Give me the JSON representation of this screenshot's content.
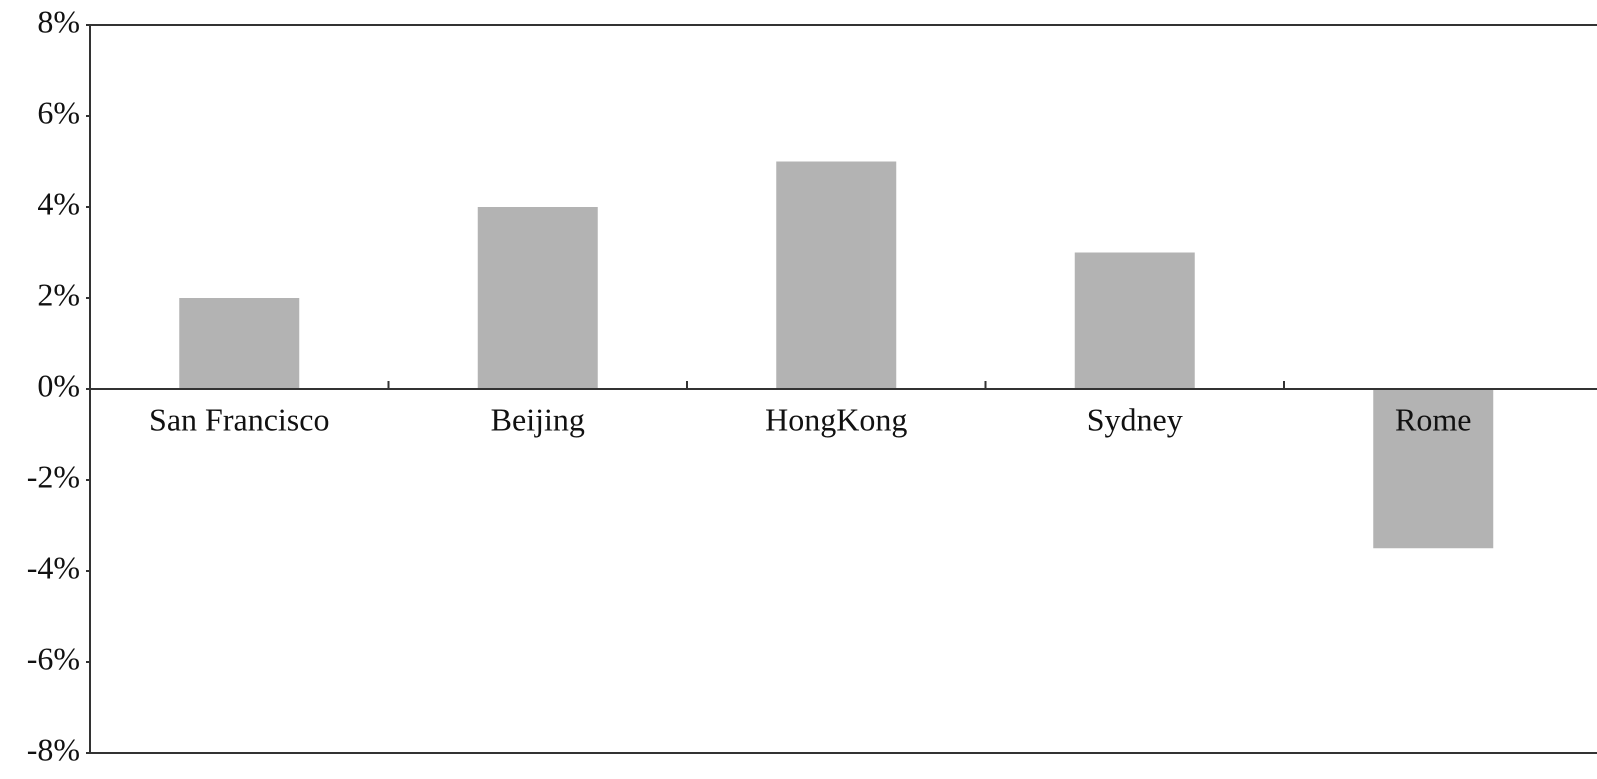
{
  "chart_data": {
    "type": "bar",
    "categories": [
      "San Francisco",
      "Beijing",
      "HongKong",
      "Sydney",
      "Rome"
    ],
    "values": [
      2,
      4,
      5,
      3,
      -3.5
    ],
    "color": "#b3b3b3",
    "ylim": [
      -8,
      8
    ],
    "yticks": [
      {
        "value": -8,
        "label": "-8%"
      },
      {
        "value": -6,
        "label": "-6%"
      },
      {
        "value": -4,
        "label": "-4%"
      },
      {
        "value": -2,
        "label": "-2%"
      },
      {
        "value": 0,
        "label": "0%"
      },
      {
        "value": 2,
        "label": "2%"
      },
      {
        "value": 4,
        "label": "4%"
      },
      {
        "value": 6,
        "label": "6%"
      },
      {
        "value": 8,
        "label": "8%"
      }
    ],
    "grid": false
  }
}
